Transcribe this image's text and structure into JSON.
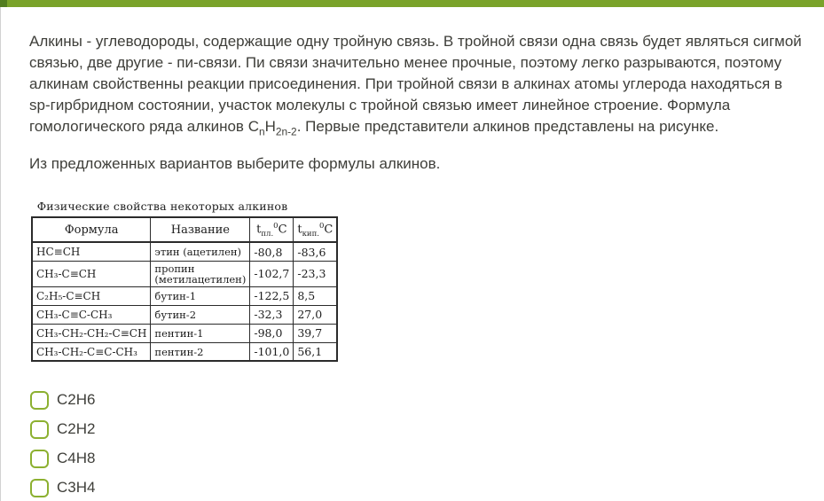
{
  "colors": {
    "top_bar_green": "#7aa32a",
    "top_bar_accent_green": "#527d1f",
    "checkbox_green": "#8cb030",
    "body_text": "#3e3e39"
  },
  "intro": {
    "text_before_formula": "Алкины - углеводороды, содержащие одну тройную связь. В тройной связи одна связь будет являться сигмой связью, две другие - пи-связи. Пи связи значительно менее прочные, поэтому легко разрываются, поэтому алкинам свойственны реакции присоединения. При тройной связи в алкинах атомы углерода находяться в sp-гирбридном состоянии, участок молекулы с тройной связью имеет линейное строение. Формула гомологического ряда алкинов ",
    "formula": {
      "c": "C",
      "c_sub": "n",
      "h": "H",
      "h_sub": "2n-2"
    },
    "text_after_formula": ". Первые представители алкинов представлены на рисунке."
  },
  "question": "Из предложенных вариантов выберите формулы алкинов.",
  "figure": {
    "title": "Физические свойства некоторых алкинов",
    "headers": {
      "formula": "Формула",
      "name": "Название",
      "melt": {
        "base": "t",
        "sub": "пл.",
        "sup": "0",
        "unit": "C"
      },
      "boil": {
        "base": "t",
        "sub": "кип.",
        "sup": "0",
        "unit": "C"
      }
    },
    "rows": [
      {
        "formula": "HC≡CH",
        "name": "этин (ацетилен)",
        "melt": "-80,8",
        "boil": "-83,6"
      },
      {
        "formula": "CH₃-C≡CH",
        "name": "пропин (метилацетилен)",
        "melt": "-102,7",
        "boil": "-23,3"
      },
      {
        "formula": "C₂H₅-C≡CH",
        "name": "бутин-1",
        "melt": "-122,5",
        "boil": "8,5"
      },
      {
        "formula": "CH₃-C≡C-CH₃",
        "name": "бутин-2",
        "melt": "-32,3",
        "boil": "27,0"
      },
      {
        "formula": "CH₃-CH₂-CH₂-C≡CH",
        "name": "пентин-1",
        "melt": "-98,0",
        "boil": "39,7"
      },
      {
        "formula": "CH₃-CH₂-C≡C-CH₃",
        "name": "пентин-2",
        "melt": "-101,0",
        "boil": "56,1"
      }
    ]
  },
  "options": [
    {
      "label": "C2H6"
    },
    {
      "label": "C2H2"
    },
    {
      "label": "C4H8"
    },
    {
      "label": "C3H4"
    }
  ]
}
